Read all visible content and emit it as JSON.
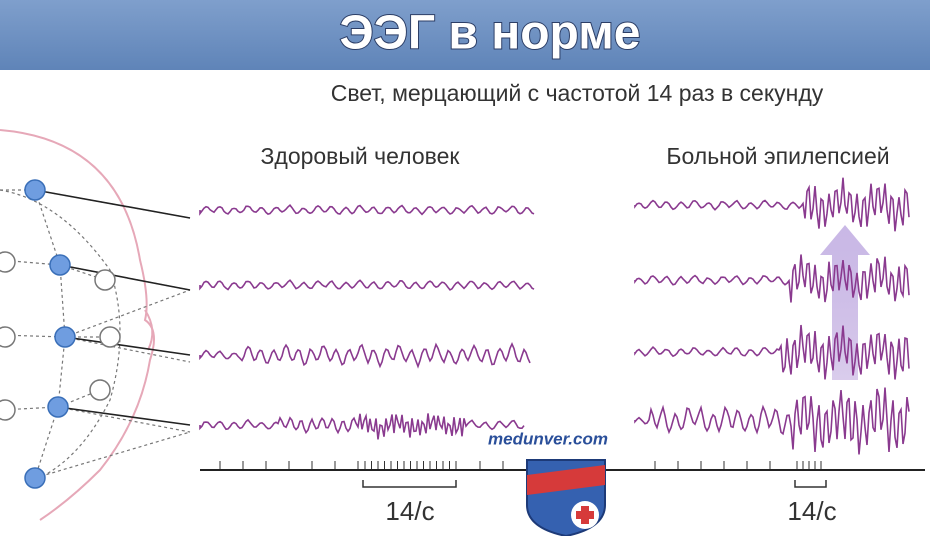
{
  "header": {
    "title": "ЭЭГ в норме"
  },
  "subtitle": "Свет, мерцающий с частотой 14 раз в секунду",
  "panels": [
    {
      "label": "Здоровый человек",
      "rate": "14/с"
    },
    {
      "label": "Больной эпилепсией",
      "rate": "14/с"
    }
  ],
  "watermark": "medunver.com"
}
